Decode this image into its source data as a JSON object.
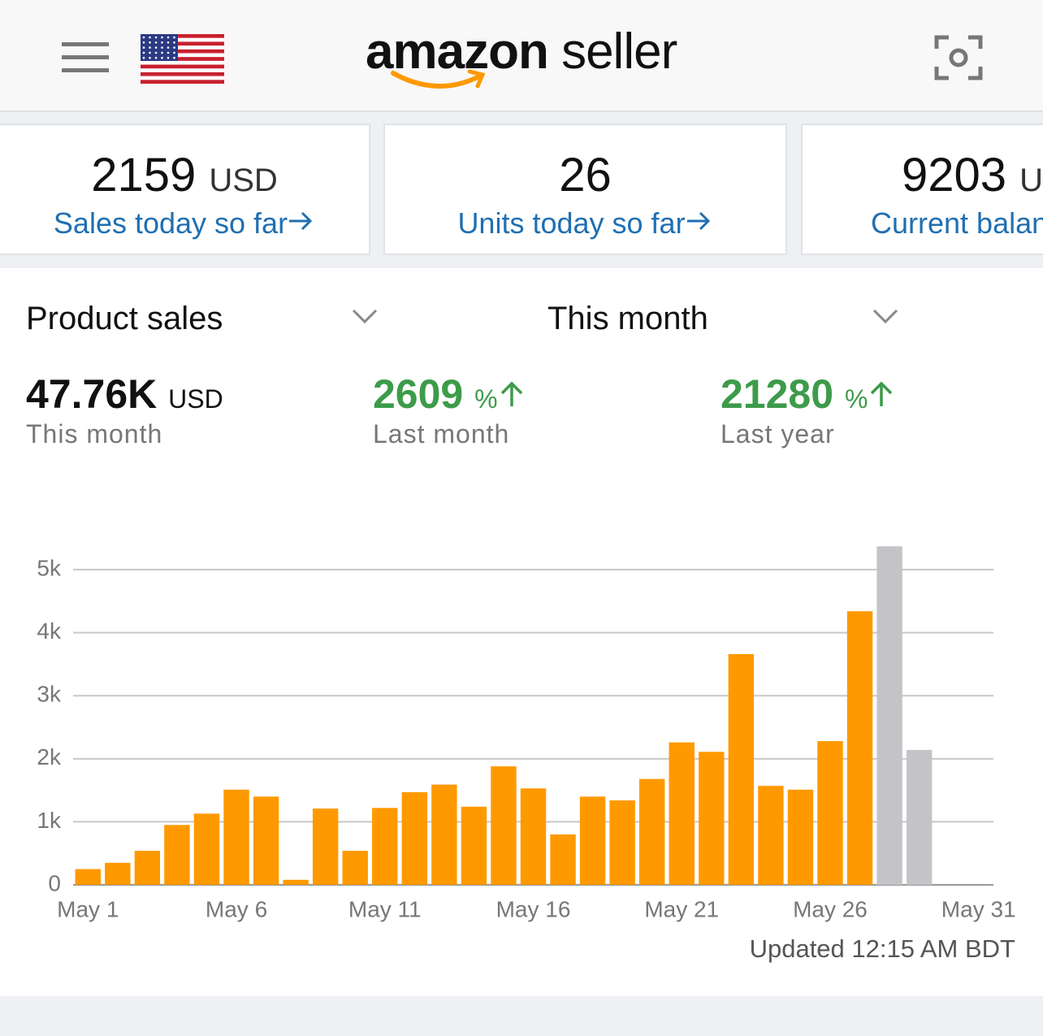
{
  "logo": {
    "brand": "amazon",
    "product": "seller"
  },
  "cards": [
    {
      "value": 2159,
      "unit": "USD",
      "label": "Sales today so far"
    },
    {
      "value": 26,
      "label": "Units today so far"
    },
    {
      "value": 9203,
      "unit": "USD",
      "label": "Current balance"
    }
  ],
  "summary": {
    "metric": "Product sales",
    "period": "This month",
    "stats": [
      {
        "value": "47.76K",
        "unit": "USD",
        "label": "This month"
      },
      {
        "value": 2609,
        "unit": "%",
        "label": "Last month"
      },
      {
        "value": 21280,
        "unit": "%",
        "label": "Last year"
      }
    ]
  },
  "chart_data": {
    "type": "bar",
    "categories": [
      "May 1",
      null,
      null,
      null,
      null,
      "May 6",
      null,
      null,
      null,
      null,
      "May 11",
      null,
      null,
      null,
      null,
      "May 16",
      null,
      null,
      null,
      null,
      "May 21",
      null,
      null,
      null,
      null,
      "May 26",
      null,
      null,
      null,
      null,
      "May 31"
    ],
    "values": [
      250,
      350,
      540,
      950,
      1130,
      1510,
      1400,
      80,
      1210,
      540,
      1220,
      1470,
      1590,
      1240,
      1880,
      1530,
      800,
      1400,
      1340,
      1680,
      2260,
      2110,
      3660,
      1570,
      1510,
      2280,
      4340,
      5370,
      2140,
      null,
      null
    ],
    "colors": [
      "#ff9900",
      "#ff9900",
      "#ff9900",
      "#ff9900",
      "#ff9900",
      "#ff9900",
      "#ff9900",
      "#ff9900",
      "#ff9900",
      "#ff9900",
      "#ff9900",
      "#ff9900",
      "#ff9900",
      "#ff9900",
      "#ff9900",
      "#ff9900",
      "#ff9900",
      "#ff9900",
      "#ff9900",
      "#ff9900",
      "#ff9900",
      "#ff9900",
      "#ff9900",
      "#ff9900",
      "#ff9900",
      "#ff9900",
      "#ff9900",
      "#c4c4c8",
      "#c4c4c8",
      null,
      null
    ],
    "ylim": [
      0,
      5400
    ],
    "yticks": [
      0,
      {
        "value": 1000,
        "label": "1k"
      },
      {
        "value": 2000,
        "label": "2k"
      },
      {
        "value": 3000,
        "label": "3k"
      },
      {
        "value": 4000,
        "label": "4k"
      },
      {
        "value": 5000,
        "label": "5k"
      }
    ],
    "grid": true,
    "annotation": "Updated 12:15 AM BDT"
  }
}
